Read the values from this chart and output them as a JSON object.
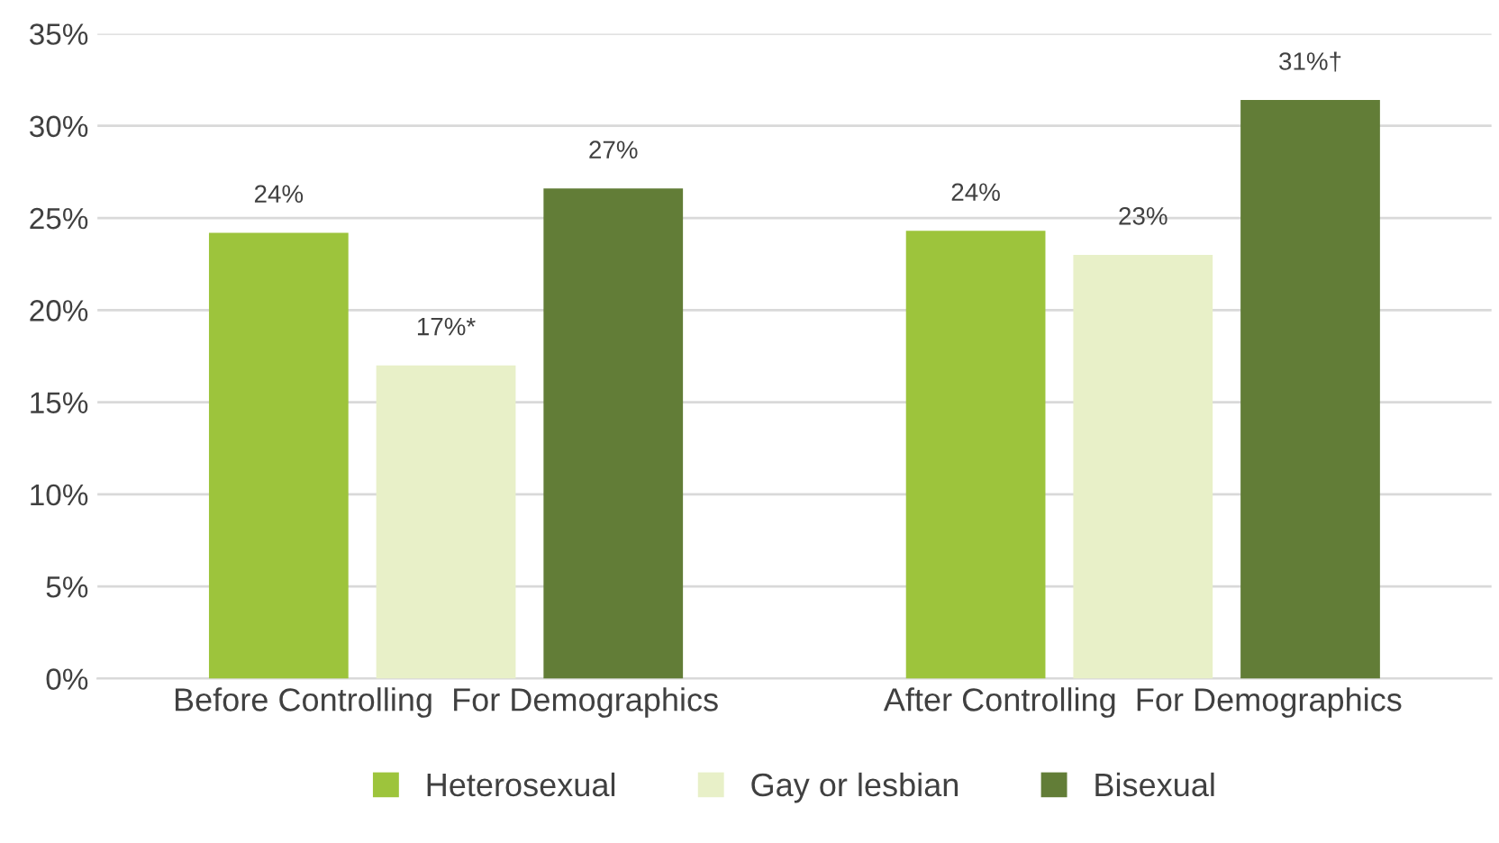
{
  "chart_data": {
    "type": "bar",
    "categories": [
      "Before Controlling  For Demographics",
      "After Controlling  For Demographics"
    ],
    "series": [
      {
        "name": "Heterosexual",
        "color": "#9dc43c",
        "values": [
          24.2,
          24.3
        ],
        "value_labels": [
          "24%",
          "24%"
        ]
      },
      {
        "name": "Gay or lesbian",
        "color": "#e8f0c8",
        "values": [
          17.0,
          23.0
        ],
        "value_labels": [
          "17%*",
          "23%"
        ]
      },
      {
        "name": "Bisexual",
        "color": "#627d37",
        "values": [
          26.6,
          31.4
        ],
        "value_labels": [
          "27%",
          "31%†"
        ]
      }
    ],
    "ylim": [
      0,
      35
    ],
    "yticks": [
      {
        "value": 0,
        "label": "0%"
      },
      {
        "value": 5,
        "label": "5%"
      },
      {
        "value": 10,
        "label": "10%"
      },
      {
        "value": 15,
        "label": "15%"
      },
      {
        "value": 20,
        "label": "20%"
      },
      {
        "value": 25,
        "label": "25%"
      },
      {
        "value": 30,
        "label": "30%"
      },
      {
        "value": 35,
        "label": "35%"
      }
    ],
    "grid": "y",
    "legend": "bottom"
  }
}
